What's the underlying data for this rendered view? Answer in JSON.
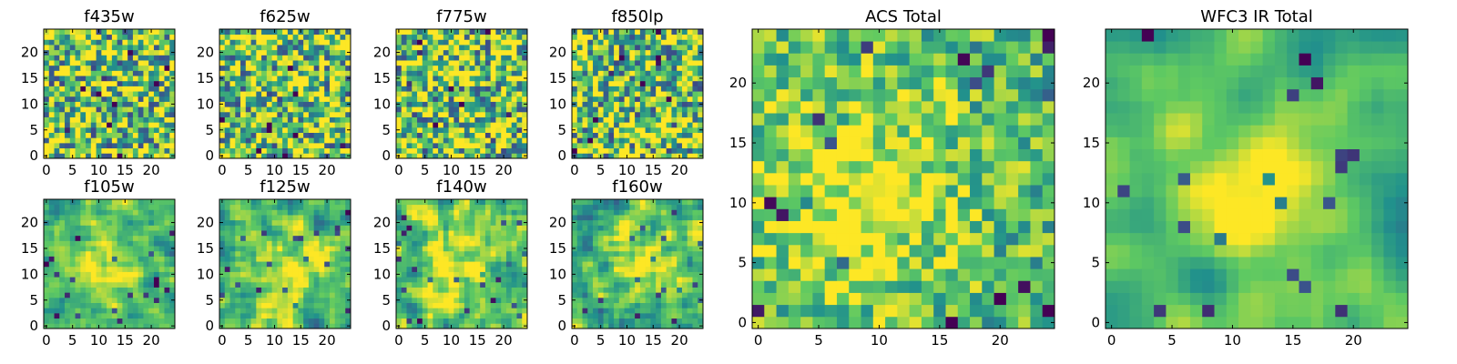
{
  "figure": {
    "description_free": true,
    "colormap_stops": [
      "#440154",
      "#3b528b",
      "#21918c",
      "#5ec962",
      "#fde725"
    ]
  },
  "chart_data": [
    {
      "type": "heatmap",
      "title": "f435w",
      "grid": [
        25,
        25
      ],
      "xlim": [
        0,
        24
      ],
      "ylim": [
        0,
        24
      ],
      "xticks": [
        "0",
        "5",
        "10",
        "15",
        "20"
      ],
      "yticks": [
        "0",
        "5",
        "10",
        "15",
        "20"
      ],
      "seed": 11,
      "smooth": 0,
      "blob": [],
      "noise": 1.0
    },
    {
      "type": "heatmap",
      "title": "f625w",
      "grid": [
        25,
        25
      ],
      "xlim": [
        0,
        24
      ],
      "ylim": [
        0,
        24
      ],
      "xticks": [
        "0",
        "5",
        "10",
        "15",
        "20"
      ],
      "yticks": [
        "0",
        "5",
        "10",
        "15",
        "20"
      ],
      "seed": 23,
      "smooth": 0,
      "blob": [],
      "noise": 1.0
    },
    {
      "type": "heatmap",
      "title": "f775w",
      "grid": [
        25,
        25
      ],
      "xlim": [
        0,
        24
      ],
      "ylim": [
        0,
        24
      ],
      "xticks": [
        "0",
        "5",
        "10",
        "15",
        "20"
      ],
      "yticks": [
        "0",
        "5",
        "10",
        "15",
        "20"
      ],
      "seed": 37,
      "smooth": 0,
      "blob": [],
      "noise": 1.0
    },
    {
      "type": "heatmap",
      "title": "f850lp",
      "grid": [
        25,
        25
      ],
      "xlim": [
        0,
        24
      ],
      "ylim": [
        0,
        24
      ],
      "xticks": [
        "0",
        "5",
        "10",
        "15",
        "20"
      ],
      "yticks": [
        "0",
        "5",
        "10",
        "15",
        "20"
      ],
      "seed": 41,
      "smooth": 0,
      "blob": [],
      "noise": 1.0
    },
    {
      "type": "heatmap",
      "title": "f105w",
      "grid": [
        25,
        25
      ],
      "xlim": [
        0,
        24
      ],
      "ylim": [
        0,
        24
      ],
      "xticks": [
        "0",
        "5",
        "10",
        "15",
        "20"
      ],
      "yticks": [
        "0",
        "5",
        "10",
        "15",
        "20"
      ],
      "seed": 53,
      "smooth": 1,
      "blob": [
        12,
        12,
        6
      ],
      "noise": 0.7
    },
    {
      "type": "heatmap",
      "title": "f125w",
      "grid": [
        25,
        25
      ],
      "xlim": [
        0,
        24
      ],
      "ylim": [
        0,
        24
      ],
      "xticks": [
        "0",
        "5",
        "10",
        "15",
        "20"
      ],
      "yticks": [
        "0",
        "5",
        "10",
        "15",
        "20"
      ],
      "seed": 67,
      "smooth": 1,
      "blob": [
        12,
        11,
        6
      ],
      "noise": 0.75
    },
    {
      "type": "heatmap",
      "title": "f140w",
      "grid": [
        25,
        25
      ],
      "xlim": [
        0,
        24
      ],
      "ylim": [
        0,
        24
      ],
      "xticks": [
        "0",
        "5",
        "10",
        "15",
        "20"
      ],
      "yticks": [
        "0",
        "5",
        "10",
        "15",
        "20"
      ],
      "seed": 79,
      "smooth": 1,
      "blob": [
        12,
        12,
        6
      ],
      "noise": 0.8
    },
    {
      "type": "heatmap",
      "title": "f160w",
      "grid": [
        25,
        25
      ],
      "xlim": [
        0,
        24
      ],
      "ylim": [
        0,
        24
      ],
      "xticks": [
        "0",
        "5",
        "10",
        "15",
        "20"
      ],
      "yticks": [
        "0",
        "5",
        "10",
        "15",
        "20"
      ],
      "seed": 83,
      "smooth": 1,
      "blob": [
        12,
        12,
        6
      ],
      "noise": 0.8
    },
    {
      "type": "heatmap",
      "title": "ACS Total",
      "grid": [
        25,
        25
      ],
      "xlim": [
        0,
        24
      ],
      "ylim": [
        0,
        24
      ],
      "xticks": [
        "0",
        "5",
        "10",
        "15",
        "20"
      ],
      "yticks": [
        "0",
        "5",
        "10",
        "15",
        "20"
      ],
      "seed": 97,
      "smooth": 0,
      "blob": [
        8,
        11,
        7
      ],
      "noise": 0.55
    },
    {
      "type": "heatmap",
      "title": "WFC3 IR Total",
      "grid": [
        25,
        25
      ],
      "xlim": [
        0,
        24
      ],
      "ylim": [
        0,
        24
      ],
      "xticks": [
        "0",
        "5",
        "10",
        "15",
        "20"
      ],
      "yticks": [
        "0",
        "5",
        "10",
        "15",
        "20"
      ],
      "seed": 101,
      "smooth": 2,
      "blob": [
        11,
        12,
        5
      ],
      "noise": 0.45
    }
  ]
}
